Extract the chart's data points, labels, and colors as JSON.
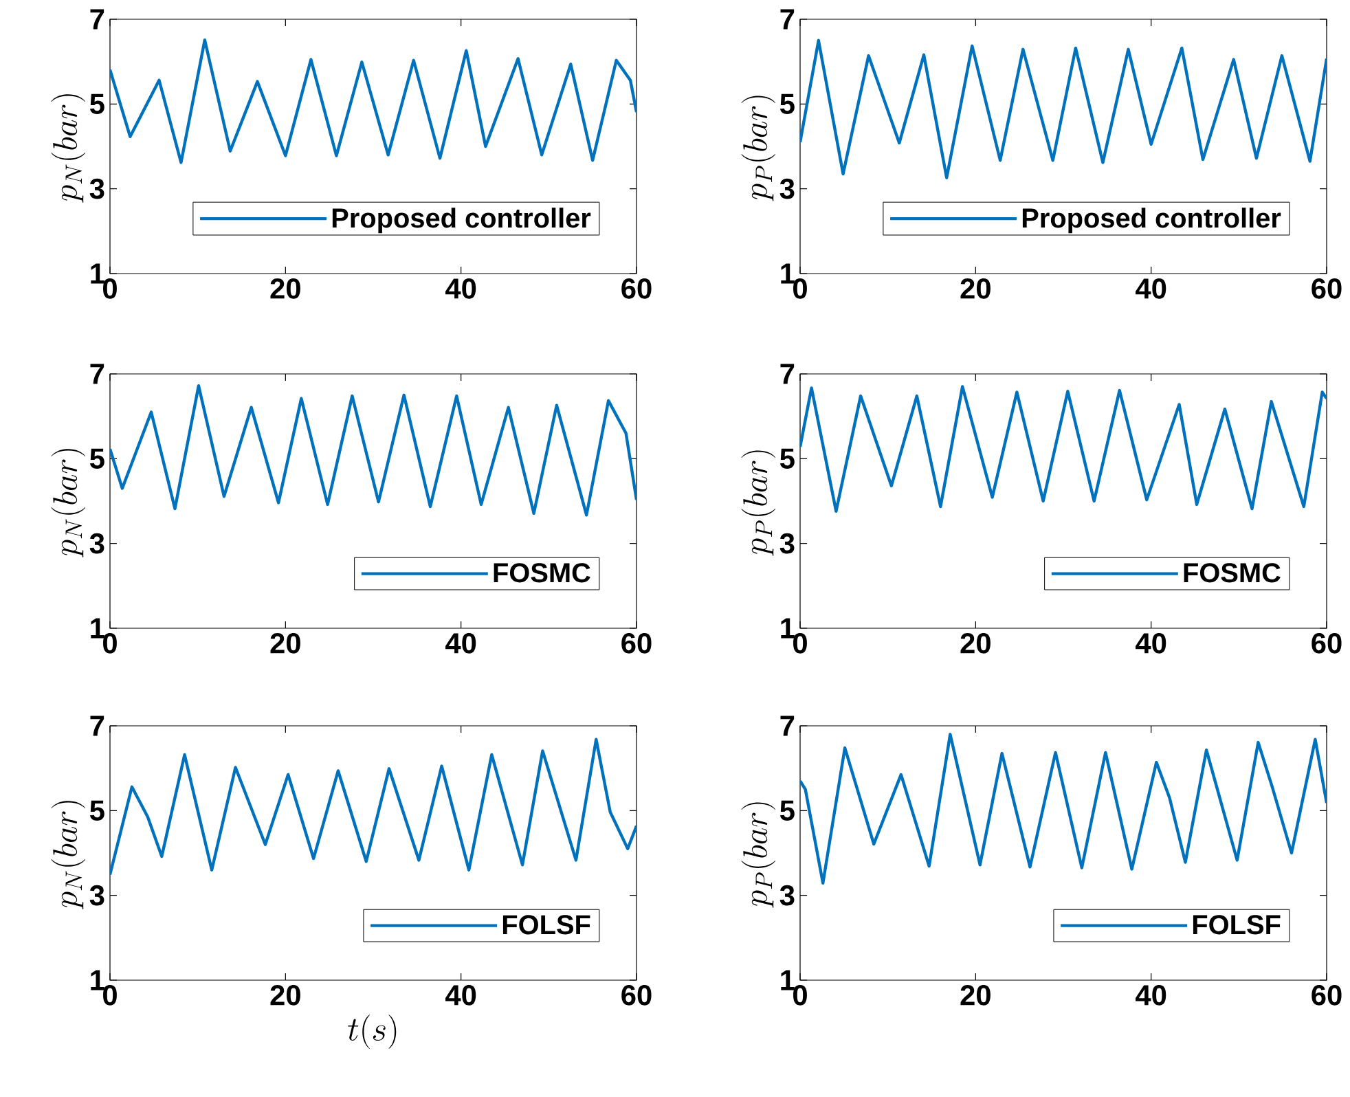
{
  "chart_data": [
    {
      "type": "line",
      "ylabel": "p_N(bar)",
      "xlim": [
        0,
        60
      ],
      "ylim": [
        1,
        7
      ],
      "xticks": [
        0,
        20,
        40,
        60
      ],
      "yticks": [
        1,
        3,
        5,
        7
      ],
      "legend": "bottom right",
      "x": [
        0,
        2.3,
        5.6,
        8.1,
        10.8,
        13.7,
        16.8,
        20.0,
        22.9,
        25.8,
        28.7,
        31.7,
        34.6,
        37.6,
        40.6,
        42.8,
        46.5,
        49.2,
        52.5,
        55.0,
        57.7,
        59.3,
        60
      ],
      "series": [
        {
          "name": "Proposed controller",
          "color": "#0072bd",
          "values": [
            5.81,
            4.23,
            5.56,
            3.62,
            6.51,
            3.89,
            5.53,
            3.78,
            6.05,
            3.78,
            5.99,
            3.8,
            6.03,
            3.72,
            6.26,
            4.0,
            6.07,
            3.8,
            5.94,
            3.67,
            6.03,
            5.56,
            4.81
          ]
        }
      ]
    },
    {
      "type": "line",
      "ylabel": "p_P(bar)",
      "xlim": [
        0,
        60
      ],
      "ylim": [
        1,
        7
      ],
      "xticks": [
        0,
        20,
        40,
        60
      ],
      "yticks": [
        1,
        3,
        5,
        7
      ],
      "legend": "bottom right",
      "x": [
        0,
        2.1,
        4.9,
        7.8,
        11.3,
        14.1,
        16.7,
        19.6,
        22.8,
        25.4,
        28.8,
        31.4,
        34.5,
        37.4,
        40.0,
        43.5,
        45.9,
        49.4,
        52.0,
        54.9,
        58.1,
        60
      ],
      "series": [
        {
          "name": "Proposed controller",
          "color": "#0072bd",
          "values": [
            4.1,
            6.5,
            3.35,
            6.14,
            4.08,
            6.16,
            3.26,
            6.37,
            3.67,
            6.29,
            3.67,
            6.32,
            3.62,
            6.29,
            4.05,
            6.32,
            3.69,
            6.05,
            3.72,
            6.14,
            3.65,
            6.07
          ]
        }
      ]
    },
    {
      "type": "line",
      "ylabel": "p_N(bar)",
      "xlim": [
        0,
        60
      ],
      "ylim": [
        1,
        7
      ],
      "xticks": [
        0,
        20,
        40,
        60
      ],
      "yticks": [
        1,
        3,
        5,
        7
      ],
      "legend": "bottom right",
      "x": [
        0,
        1.4,
        4.7,
        7.4,
        10.1,
        13.0,
        16.1,
        19.2,
        21.8,
        24.8,
        27.6,
        30.6,
        33.5,
        36.5,
        39.5,
        42.3,
        45.4,
        48.3,
        50.9,
        54.3,
        56.8,
        58.8,
        60
      ],
      "series": [
        {
          "name": "FOSMC",
          "color": "#0072bd",
          "values": [
            5.23,
            4.3,
            6.1,
            3.82,
            6.72,
            4.11,
            6.21,
            3.96,
            6.42,
            3.92,
            6.48,
            3.98,
            6.5,
            3.87,
            6.48,
            3.92,
            6.21,
            3.71,
            6.26,
            3.67,
            6.37,
            5.6,
            4.03
          ]
        }
      ]
    },
    {
      "type": "line",
      "ylabel": "p_P(bar)",
      "xlim": [
        0,
        60
      ],
      "ylim": [
        1,
        7
      ],
      "xticks": [
        0,
        20,
        40,
        60
      ],
      "yticks": [
        1,
        3,
        5,
        7
      ],
      "legend": "bottom right",
      "x": [
        0,
        1.3,
        4.1,
        6.9,
        10.4,
        13.3,
        16.0,
        18.5,
        21.9,
        24.7,
        27.7,
        30.5,
        33.5,
        36.4,
        39.5,
        43.2,
        45.2,
        48.4,
        51.5,
        53.7,
        57.4,
        59.5,
        60
      ],
      "series": [
        {
          "name": "FOSMC",
          "color": "#0072bd",
          "values": [
            5.28,
            6.67,
            3.76,
            6.48,
            4.36,
            6.48,
            3.87,
            6.7,
            4.09,
            6.57,
            4.0,
            6.59,
            4.0,
            6.61,
            4.03,
            6.28,
            3.92,
            6.17,
            3.82,
            6.35,
            3.87,
            6.57,
            6.42
          ]
        }
      ]
    },
    {
      "type": "line",
      "ylabel": "p_N(bar)",
      "xlabel": "t(s)",
      "xlim": [
        0,
        60
      ],
      "ylim": [
        1,
        7
      ],
      "xticks": [
        0,
        20,
        40,
        60
      ],
      "yticks": [
        1,
        3,
        5,
        7
      ],
      "legend": "bottom right",
      "x": [
        0,
        2.5,
        4.3,
        5.9,
        8.5,
        11.6,
        14.3,
        17.7,
        20.3,
        23.2,
        26.0,
        29.2,
        31.8,
        35.2,
        37.8,
        40.9,
        43.5,
        47.0,
        49.3,
        53.1,
        55.4,
        57.0,
        59.0,
        60
      ],
      "series": [
        {
          "name": "FOLSF",
          "color": "#0072bd",
          "values": [
            3.49,
            5.56,
            4.85,
            3.92,
            6.32,
            3.6,
            6.02,
            4.2,
            5.85,
            3.87,
            5.94,
            3.8,
            5.99,
            3.83,
            6.05,
            3.6,
            6.32,
            3.72,
            6.41,
            3.83,
            6.68,
            4.97,
            4.1,
            4.64
          ]
        }
      ]
    },
    {
      "type": "line",
      "ylabel": "p_P(bar)",
      "xlim": [
        0,
        60
      ],
      "ylim": [
        1,
        7
      ],
      "xticks": [
        0,
        20,
        40,
        60
      ],
      "yticks": [
        1,
        3,
        5,
        7
      ],
      "legend": "bottom right",
      "x": [
        0,
        0.6,
        2.6,
        5.1,
        8.4,
        11.5,
        14.7,
        17.1,
        20.5,
        23.0,
        26.2,
        29.1,
        32.1,
        34.8,
        37.8,
        40.6,
        42.1,
        43.9,
        46.3,
        49.8,
        52.2,
        53.8,
        56.0,
        58.7,
        60
      ],
      "series": [
        {
          "name": "FOLSF",
          "color": "#0072bd",
          "values": [
            5.7,
            5.5,
            3.29,
            6.48,
            4.21,
            5.85,
            3.69,
            6.8,
            3.72,
            6.35,
            3.67,
            6.37,
            3.65,
            6.37,
            3.62,
            6.14,
            5.3,
            3.78,
            6.43,
            3.83,
            6.61,
            5.56,
            4.0,
            6.68,
            5.18
          ]
        }
      ]
    }
  ]
}
